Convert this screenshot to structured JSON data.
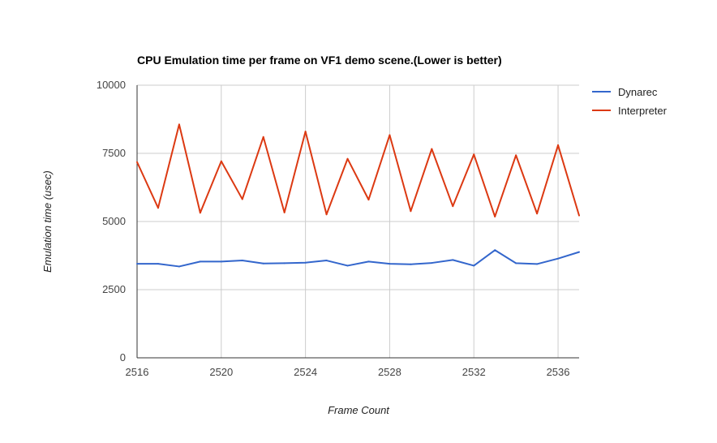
{
  "chart_data": {
    "type": "line",
    "title": "CPU Emulation time per frame on VF1 demo scene.(Lower is better)",
    "xlabel": "Frame Count",
    "ylabel": "Emulation time (usec)",
    "x": [
      2516,
      2517,
      2518,
      2519,
      2520,
      2521,
      2522,
      2523,
      2524,
      2525,
      2526,
      2527,
      2528,
      2529,
      2530,
      2531,
      2532,
      2533,
      2534,
      2535,
      2536,
      2537
    ],
    "xlim": [
      2516,
      2537
    ],
    "ylim": [
      0,
      10000
    ],
    "xticks": [
      "2516",
      "2520",
      "2524",
      "2528",
      "2532",
      "2536"
    ],
    "xtick_values": [
      2516,
      2520,
      2524,
      2528,
      2532,
      2536
    ],
    "yticks": [
      "0",
      "2500",
      "5000",
      "7500",
      "10000"
    ],
    "ytick_values": [
      0,
      2500,
      5000,
      7500,
      10000
    ],
    "grid": true,
    "legend_position": "right",
    "series": [
      {
        "name": "Dynarec",
        "color": "#3366cc",
        "values": [
          3450,
          3450,
          3350,
          3530,
          3530,
          3570,
          3460,
          3470,
          3490,
          3570,
          3380,
          3530,
          3450,
          3430,
          3480,
          3590,
          3380,
          3950,
          3470,
          3440,
          3640,
          3880
        ]
      },
      {
        "name": "Interpreter",
        "color": "#dc3912",
        "values": [
          7180,
          5500,
          8560,
          5320,
          7210,
          5820,
          8100,
          5330,
          8300,
          5260,
          7300,
          5800,
          8170,
          5380,
          7660,
          5560,
          7460,
          5180,
          7430,
          5290,
          7800,
          5220
        ]
      }
    ]
  }
}
